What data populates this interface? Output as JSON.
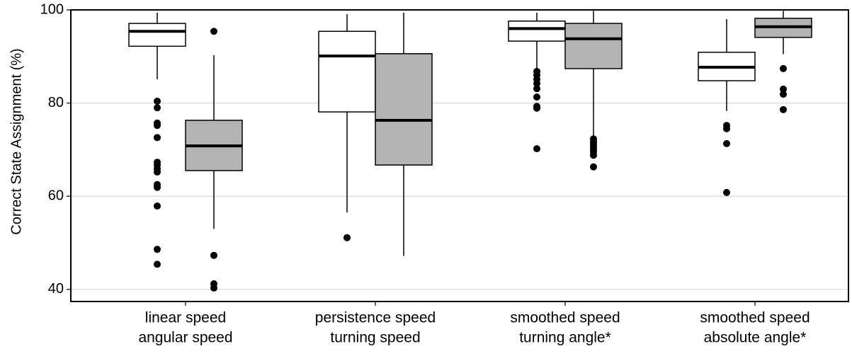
{
  "chart_data": {
    "type": "box",
    "y_label": "Correct State Assignment (%)",
    "categories": [
      [
        "linear speed",
        "angular speed"
      ],
      [
        "persistence speed",
        "turning speed"
      ],
      [
        "smoothed speed",
        "turning angle*"
      ],
      [
        "smoothed speed",
        "absolute  angle*"
      ]
    ],
    "ylim": [
      37.4,
      100
    ],
    "yticks": [
      40,
      60,
      80,
      100
    ],
    "grid": true,
    "series": [
      {
        "color": "#ffffff",
        "boxes": [
          {
            "low": 85.1,
            "q1": 92.2,
            "median": 95.4,
            "q3": 97.1,
            "high": 99.4,
            "outliers": [
              80.4,
              79.0,
              75.7,
              75.2,
              72.6,
              67.3,
              66.7,
              65.9,
              65.2,
              62.5,
              61.9,
              57.9,
              48.6,
              45.4
            ]
          },
          {
            "low": 56.5,
            "q1": 78.1,
            "median": 90.1,
            "q3": 95.4,
            "high": 99.1,
            "outliers": [
              51.1
            ]
          },
          {
            "low": 87.4,
            "q1": 93.3,
            "median": 96.0,
            "q3": 97.6,
            "high": 99.4,
            "outliers": [
              86.8,
              86.0,
              85.1,
              84.2,
              83.1,
              81.3,
              79.3,
              78.9,
              70.2
            ]
          },
          {
            "low": 78.3,
            "q1": 84.8,
            "median": 87.7,
            "q3": 90.9,
            "high": 98.0,
            "outliers": [
              75.2,
              74.5,
              71.3,
              60.8
            ]
          }
        ]
      },
      {
        "color": "#b3b3b3",
        "boxes": [
          {
            "low": 53.0,
            "q1": 65.5,
            "median": 70.8,
            "q3": 76.3,
            "high": 90.3,
            "outliers": [
              95.4,
              47.3,
              41.2,
              40.3
            ]
          },
          {
            "low": 47.2,
            "q1": 66.7,
            "median": 76.3,
            "q3": 90.6,
            "high": 99.4,
            "outliers": []
          },
          {
            "low": 72.8,
            "q1": 87.4,
            "median": 93.8,
            "q3": 97.1,
            "high": 99.8,
            "outliers": [
              72.3,
              71.7,
              71.3,
              70.7,
              70.1,
              69.5,
              68.8,
              66.3
            ]
          },
          {
            "low": 90.5,
            "q1": 94.1,
            "median": 96.4,
            "q3": 98.2,
            "high": 99.8,
            "outliers": [
              87.4,
              83.0,
              81.9,
              78.6
            ]
          }
        ]
      }
    ]
  }
}
